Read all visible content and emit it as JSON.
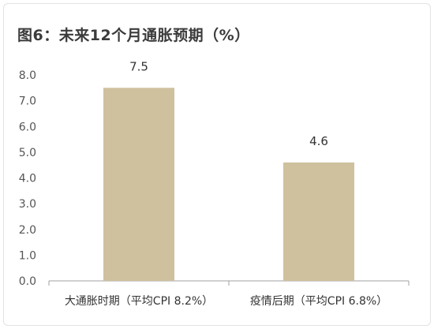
{
  "title": "图6：未来12个月通胀预期（%）",
  "chart_data": {
    "type": "bar",
    "title": "图6：未来12个月通胀预期（%）",
    "categories": [
      "大通胀时期（平均CPI 8.2%）",
      "疫情后期（平均CPI 6.8%）"
    ],
    "values": [
      7.5,
      4.6
    ],
    "data_labels": [
      "7.5",
      "4.6"
    ],
    "ylim": [
      0,
      8
    ],
    "yticks": [
      "0.0",
      "1.0",
      "2.0",
      "3.0",
      "4.0",
      "5.0",
      "6.0",
      "7.0",
      "8.0"
    ],
    "xlabel": "",
    "ylabel": "",
    "grid": false,
    "bar_color": "#cfc09e"
  }
}
